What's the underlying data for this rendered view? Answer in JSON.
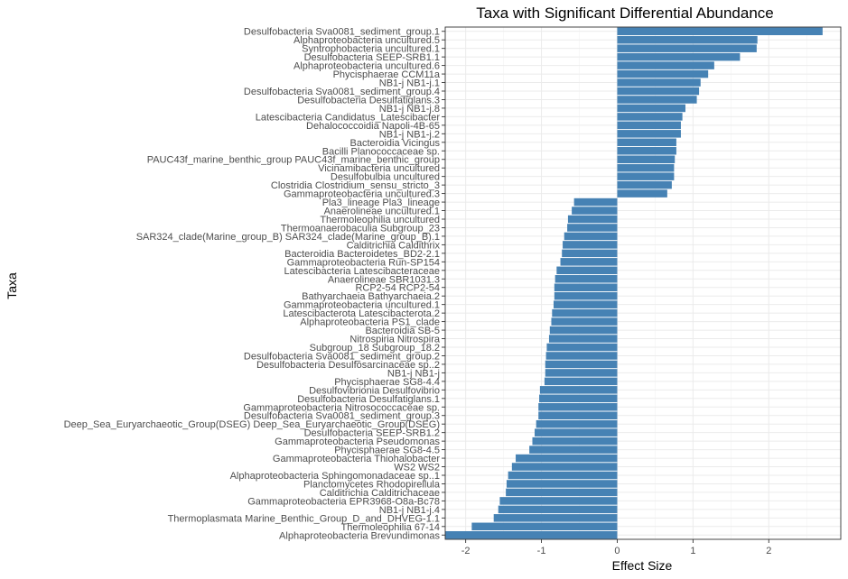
{
  "chart_data": {
    "type": "bar",
    "orientation": "horizontal",
    "title": "Taxa with Significant Differential Abundance",
    "xlabel": "Effect Size",
    "ylabel": "Taxa",
    "xlim": [
      -2.27,
      2.95
    ],
    "xticks": [
      -2,
      -1,
      0,
      1,
      2
    ],
    "grid": true,
    "legend": "none",
    "bar_color": "#4682B4",
    "categories": [
      "Desulfobacteria Sva0081_sediment_group.1",
      "Alphaproteobacteria uncultured.5",
      "Syntrophobacteria uncultured.1",
      "Desulfobacteria SEEP-SRB1.1",
      "Alphaproteobacteria uncultured.6",
      "Phycisphaerae CCM11a",
      "NB1-j NB1-j.1",
      "Desulfobacteria Sva0081_sediment_group.4",
      "Desulfobacteria Desulfatiglans.3",
      "NB1-j NB1-j.8",
      "Latescibacteria Candidatus_Latescibacter",
      "Dehalococcoidia Napoli-4B-65",
      "NB1-j NB1-j.2",
      "Bacteroidia Vicingus",
      "Bacilli Planococcaceae sp.",
      "PAUC43f_marine_benthic_group PAUC43f_marine_benthic_group",
      "Vicinamibacteria uncultured",
      "Desulfobulbia uncultured",
      "Clostridia Clostridium_sensu_stricto_3",
      "Gammaproteobacteria uncultured.3",
      "Pla3_lineage Pla3_lineage",
      "Anaerolineae uncultured.1",
      "Thermoleophilia uncultured",
      "Thermoanaerobaculia Subgroup_23",
      "SAR324_clade(Marine_group_B) SAR324_clade(Marine_group_B).1",
      "Calditrichia Caldithrix",
      "Bacteroidia Bacteroidetes_BD2-2.1",
      "Gammaproteobacteria Run-SP154",
      "Latescibacteria Latescibacteraceae",
      "Anaerolineae SBR1031.3",
      "RCP2-54 RCP2-54",
      "Bathyarchaeia Bathyarchaeia.2",
      "Gammaproteobacteria uncultured.1",
      "Latescibacterota Latescibacterota.2",
      "Alphaproteobacteria PS1_clade",
      "Bacteroidia SB-5",
      "Nitrospiria Nitrospira",
      "Subgroup_18 Subgroup_18.2",
      "Desulfobacteria Sva0081_sediment_group.2",
      "Desulfobacteria Desulfosarcinaceae sp..2",
      "NB1-j NB1-j",
      "Phycisphaerae SG8-4.4",
      "Desulfovibrionia Desulfovibrio",
      "Desulfobacteria Desulfatiglans.1",
      "Gammaproteobacteria Nitrosococcaceae sp.",
      "Desulfobacteria Sva0081_sediment_group.3",
      "Deep_Sea_Euryarchaeotic_Group(DSEG) Deep_Sea_Euryarchaeotic_Group(DSEG)",
      "Desulfobacteria SEEP-SRB1.2",
      "Gammaproteobacteria Pseudomonas",
      "Phycisphaerae SG8-4.5",
      "Gammaproteobacteria Thiohalobacter",
      "WS2 WS2",
      "Alphaproteobacteria Sphingomonadaceae sp..1",
      "Planctomycetes Rhodopirellula",
      "Calditrichia Calditrichaceae",
      "Gammaproteobacteria EPR3968-O8a-Bc78",
      "NB1-j NB1-j.4",
      "Thermoplasmata Marine_Benthic_Group_D_and_DHVEG-1.1",
      "Thermoleophilia 67-14",
      "Alphaproteobacteria Brevundimonas"
    ],
    "values": [
      2.71,
      1.85,
      1.84,
      1.62,
      1.28,
      1.2,
      1.1,
      1.08,
      1.05,
      0.9,
      0.86,
      0.84,
      0.84,
      0.78,
      0.78,
      0.76,
      0.75,
      0.75,
      0.72,
      0.66,
      -0.57,
      -0.6,
      -0.65,
      -0.66,
      -0.7,
      -0.72,
      -0.73,
      -0.75,
      -0.8,
      -0.82,
      -0.83,
      -0.83,
      -0.84,
      -0.86,
      -0.87,
      -0.89,
      -0.9,
      -0.93,
      -0.94,
      -0.95,
      -0.95,
      -0.96,
      -1.02,
      -1.03,
      -1.04,
      -1.04,
      -1.07,
      -1.09,
      -1.12,
      -1.16,
      -1.34,
      -1.39,
      -1.44,
      -1.46,
      -1.47,
      -1.55,
      -1.57,
      -1.63,
      -1.92,
      -2.27
    ]
  }
}
